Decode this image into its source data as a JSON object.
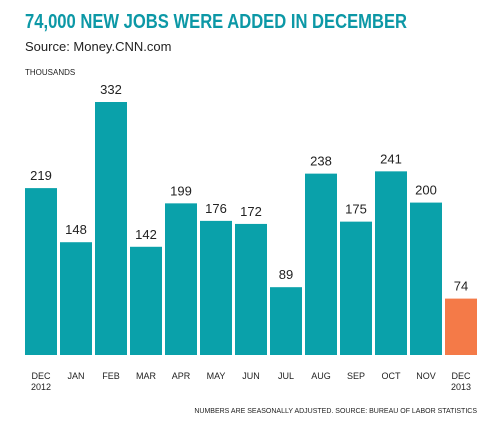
{
  "chart_data": {
    "type": "bar",
    "title": "74,000 NEW JOBS WERE ADDED IN DECEMBER",
    "subtitle": "Source: Money.CNN.com",
    "y_label": "THOUSANDS",
    "footnote": "NUMBERS ARE SEASONALLY ADJUSTED.  SOURCE: BUREAU OF LABOR STATISTICS",
    "categories": [
      "DEC 2012",
      "JAN",
      "FEB",
      "MAR",
      "APR",
      "MAY",
      "JUN",
      "JUL",
      "AUG",
      "SEP",
      "OCT",
      "NOV",
      "DEC 2013"
    ],
    "values": [
      219,
      148,
      332,
      142,
      199,
      176,
      172,
      89,
      238,
      175,
      241,
      200,
      74
    ],
    "colors": [
      "#0aa1aa",
      "#0aa1aa",
      "#0aa1aa",
      "#0aa1aa",
      "#0aa1aa",
      "#0aa1aa",
      "#0aa1aa",
      "#0aa1aa",
      "#0aa1aa",
      "#0aa1aa",
      "#0aa1aa",
      "#0aa1aa",
      "#f47a48"
    ],
    "ylim": [
      0,
      332
    ]
  }
}
